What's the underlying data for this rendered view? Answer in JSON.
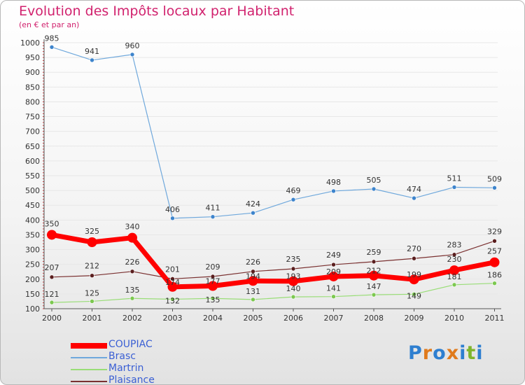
{
  "header": {
    "title": "Evolution des Impôts locaux par Habitant",
    "subtitle": "(en € et par an)"
  },
  "colors": {
    "title": "#d1226e",
    "legend_text": "#3a5fd4",
    "grid": "#e7e7e7"
  },
  "logo": {
    "letters": [
      "P",
      "r",
      "o",
      "x",
      "i",
      "t",
      "i"
    ],
    "colors": [
      "#2e7fd0",
      "#e07a1b",
      "#2e7fd0",
      "#e07a1b",
      "#2e7fd0",
      "#7fb52d",
      "#2e7fd0"
    ]
  },
  "chart_data": {
    "type": "line",
    "title": "Evolution des Impôts locaux par Habitant",
    "xlabel": "",
    "ylabel": "(en € et par an)",
    "ylim": [
      100,
      1000
    ],
    "yticks": [
      100,
      150,
      200,
      250,
      300,
      350,
      400,
      450,
      500,
      550,
      600,
      650,
      700,
      750,
      800,
      850,
      900,
      950,
      1000
    ],
    "x": [
      "2000",
      "2001",
      "2002",
      "2003",
      "2004",
      "2005",
      "2006",
      "2007",
      "2008",
      "2009",
      "2010",
      "2011"
    ],
    "legend_position": "bottom-left",
    "series": [
      {
        "name": "COUPIAC",
        "color": "#ff0000",
        "width": 7,
        "marker": 7,
        "values": [
          350,
          325,
          340,
          174,
          177,
          194,
          193,
          209,
          212,
          199,
          230,
          257
        ]
      },
      {
        "name": "Brasc",
        "color": "#6fa8dc",
        "width": 1.2,
        "marker": 3,
        "values": [
          985,
          941,
          960,
          406,
          411,
          424,
          469,
          498,
          505,
          474,
          511,
          509
        ]
      },
      {
        "name": "Martrin",
        "color": "#99dd77",
        "width": 1.2,
        "marker": 3,
        "values": [
          121,
          125,
          135,
          132,
          135,
          131,
          140,
          141,
          147,
          149,
          181,
          186
        ]
      },
      {
        "name": "Plaisance",
        "color": "#7a3030",
        "width": 1.2,
        "marker": 3,
        "values": [
          207,
          212,
          226,
          201,
          209,
          226,
          235,
          249,
          259,
          270,
          283,
          329
        ]
      }
    ],
    "labels": [
      {
        "series": "COUPIAC",
        "values": [
          "350",
          "325",
          "340",
          "174",
          "177",
          "194",
          "193",
          "209",
          "212",
          "199",
          "230",
          "257"
        ]
      },
      {
        "series": "Brasc",
        "values": [
          "985",
          "941",
          "960",
          "406",
          "411",
          "424",
          "469",
          "498",
          "505",
          "474",
          "511",
          "509"
        ]
      },
      {
        "series": "Martrin",
        "values": [
          "121",
          "125",
          "135",
          "132",
          "135",
          "131",
          "140",
          "141",
          "147",
          "149",
          "181",
          "186"
        ]
      },
      {
        "series": "Plaisance",
        "values": [
          "207",
          "212",
          "226",
          "201",
          "209",
          "226",
          "235",
          "249",
          "259",
          "270",
          "283",
          "329"
        ]
      }
    ]
  }
}
